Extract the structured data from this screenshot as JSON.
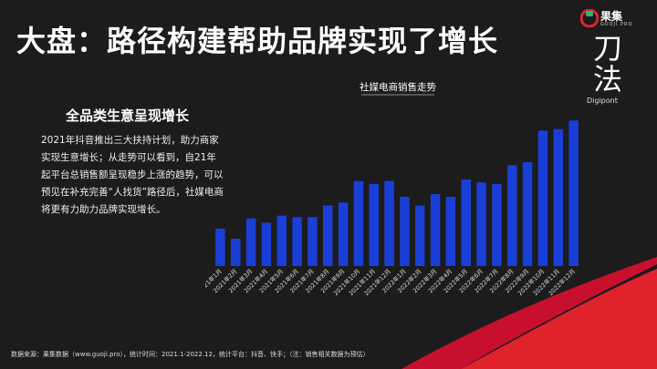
{
  "title": "大盘：路径构建帮助品牌实现了增长",
  "brand": {
    "name": "果集",
    "sub": "GUOJI.PRO",
    "colors": {
      "red": "#e0252f",
      "green": "#2fb36b"
    }
  },
  "dao": {
    "char1": "刀",
    "char2": "法",
    "sub": "Digipont"
  },
  "subhead": "全品类生意呈现增长",
  "description": "2021年抖音推出三大扶持计划，助力商家实现生意增长；从走势可以看到，自21年起平台总销售额呈现稳步上涨的趋势，可以预见在补充完善“人找货”路径后，社媒电商将更有力助力品牌实现增长。",
  "source": "数据来源：果集数据（www.guoji.pro），统计时间：2021.1-2022.12，统计平台：抖音、快手；（注：销售相关数据为预估）",
  "chart_data": {
    "type": "bar",
    "title": "社媒电商销售走势",
    "categories": [
      "2021年1月",
      "2021年2月",
      "2021年3月",
      "2021年4月",
      "2021年5月",
      "2021年6月",
      "2021年7月",
      "2021年8月",
      "2021年9月",
      "2021年10月",
      "2021年11月",
      "2021年12月",
      "2022年1月",
      "2022年2月",
      "2022年3月",
      "2022年4月",
      "2022年5月",
      "2022年6月",
      "2022年7月",
      "2022年8月",
      "2022年9月",
      "2022年10月",
      "2022年11月",
      "2022年12月"
    ],
    "values": [
      26,
      19,
      33,
      30,
      35,
      34,
      34,
      42,
      44,
      59,
      57,
      59,
      48,
      42,
      50,
      48,
      60,
      58,
      57,
      70,
      72,
      94,
      95,
      101
    ],
    "ylim": [
      0,
      110
    ],
    "color": "#1a3fd8",
    "grid": false,
    "legend": "none"
  }
}
